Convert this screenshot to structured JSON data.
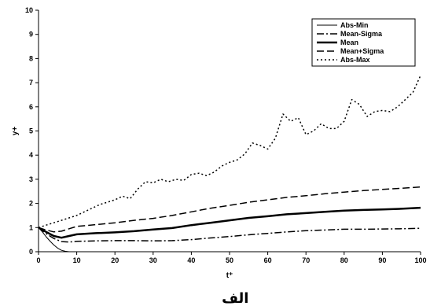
{
  "chart_data": {
    "type": "line",
    "xlabel": "t⁺",
    "ylabel": "y+",
    "xlim": [
      0,
      100
    ],
    "ylim": [
      0,
      10
    ],
    "xticks": [
      0,
      10,
      20,
      30,
      40,
      50,
      60,
      70,
      80,
      90,
      100
    ],
    "yticks": [
      0,
      1,
      2,
      3,
      4,
      5,
      6,
      7,
      8,
      9,
      10
    ],
    "grid": false,
    "legend_position": "top-right",
    "caption": "الف",
    "series": [
      {
        "name": "Abs-Min",
        "style": "thin-solid",
        "x": [
          0,
          1,
          2,
          3,
          4,
          5,
          6,
          7,
          8
        ],
        "y": [
          1.0,
          0.82,
          0.62,
          0.44,
          0.28,
          0.15,
          0.06,
          0.02,
          0.0
        ]
      },
      {
        "name": "Mean-Sigma",
        "style": "dash-dot",
        "x": [
          0,
          2,
          4,
          6,
          8,
          10,
          15,
          20,
          25,
          30,
          35,
          40,
          45,
          50,
          55,
          60,
          65,
          70,
          75,
          80,
          85,
          90,
          95,
          100
        ],
        "y": [
          1.0,
          0.75,
          0.55,
          0.42,
          0.4,
          0.43,
          0.45,
          0.46,
          0.46,
          0.45,
          0.46,
          0.5,
          0.57,
          0.63,
          0.7,
          0.76,
          0.82,
          0.87,
          0.9,
          0.93,
          0.93,
          0.94,
          0.95,
          0.97
        ]
      },
      {
        "name": "Mean",
        "style": "thick-solid",
        "x": [
          0,
          2,
          4,
          6,
          8,
          10,
          15,
          20,
          25,
          30,
          35,
          40,
          45,
          50,
          55,
          60,
          65,
          70,
          75,
          80,
          85,
          90,
          95,
          100
        ],
        "y": [
          1.0,
          0.82,
          0.65,
          0.58,
          0.65,
          0.72,
          0.77,
          0.8,
          0.85,
          0.92,
          0.98,
          1.1,
          1.2,
          1.3,
          1.4,
          1.47,
          1.55,
          1.6,
          1.65,
          1.7,
          1.73,
          1.75,
          1.78,
          1.82
        ]
      },
      {
        "name": "Mean+Sigma",
        "style": "dashed",
        "x": [
          0,
          2,
          4,
          6,
          8,
          10,
          15,
          20,
          25,
          30,
          35,
          40,
          45,
          50,
          55,
          60,
          65,
          70,
          75,
          80,
          85,
          90,
          95,
          100
        ],
        "y": [
          1.0,
          0.9,
          0.82,
          0.85,
          0.95,
          1.05,
          1.12,
          1.2,
          1.3,
          1.38,
          1.5,
          1.65,
          1.8,
          1.92,
          2.05,
          2.15,
          2.25,
          2.32,
          2.4,
          2.47,
          2.53,
          2.58,
          2.63,
          2.68
        ]
      },
      {
        "name": "Abs-Max",
        "style": "dotted",
        "x": [
          0,
          2,
          4,
          6,
          8,
          10,
          12,
          14,
          16,
          18,
          20,
          22,
          24,
          26,
          28,
          30,
          32,
          34,
          36,
          38,
          40,
          42,
          44,
          46,
          48,
          50,
          52,
          54,
          56,
          58,
          60,
          62,
          64,
          66,
          68,
          70,
          72,
          74,
          76,
          78,
          80,
          82,
          84,
          86,
          88,
          90,
          92,
          94,
          96,
          98,
          100
        ],
        "y": [
          1.0,
          1.1,
          1.2,
          1.3,
          1.4,
          1.5,
          1.65,
          1.8,
          1.95,
          2.05,
          2.15,
          2.3,
          2.2,
          2.6,
          2.9,
          2.85,
          3.0,
          2.9,
          3.0,
          2.95,
          3.2,
          3.25,
          3.15,
          3.3,
          3.55,
          3.7,
          3.8,
          4.05,
          4.5,
          4.4,
          4.25,
          4.7,
          5.7,
          5.4,
          5.55,
          4.85,
          5.0,
          5.3,
          5.1,
          5.1,
          5.4,
          6.3,
          6.1,
          5.6,
          5.8,
          5.85,
          5.8,
          6.0,
          6.3,
          6.6,
          7.3
        ]
      }
    ]
  }
}
